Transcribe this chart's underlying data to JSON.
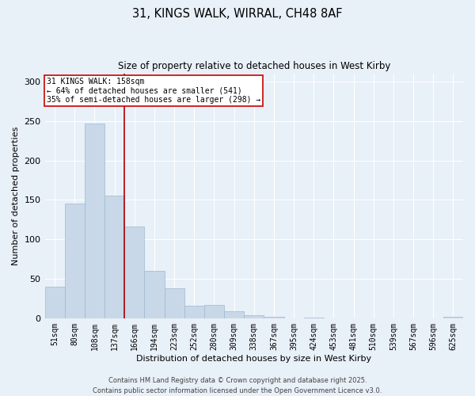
{
  "title_line1": "31, KINGS WALK, WIRRAL, CH48 8AF",
  "title_line2": "Size of property relative to detached houses in West Kirby",
  "xlabel": "Distribution of detached houses by size in West Kirby",
  "ylabel": "Number of detached properties",
  "categories": [
    "51sqm",
    "80sqm",
    "108sqm",
    "137sqm",
    "166sqm",
    "194sqm",
    "223sqm",
    "252sqm",
    "280sqm",
    "309sqm",
    "338sqm",
    "367sqm",
    "395sqm",
    "424sqm",
    "453sqm",
    "481sqm",
    "510sqm",
    "539sqm",
    "567sqm",
    "596sqm",
    "625sqm"
  ],
  "values": [
    40,
    145,
    247,
    155,
    116,
    60,
    38,
    16,
    17,
    9,
    4,
    2,
    0,
    1,
    0,
    0,
    0,
    0,
    0,
    0,
    2
  ],
  "bar_color": "#c8d8e8",
  "bar_edgecolor": "#a0b8d0",
  "vline_x": 3.5,
  "vline_color": "#aa0000",
  "annotation_text": "31 KINGS WALK: 158sqm\n← 64% of detached houses are smaller (541)\n35% of semi-detached houses are larger (298) →",
  "annotation_box_color": "#ffffff",
  "annotation_border_color": "#cc0000",
  "ylim": [
    0,
    310
  ],
  "yticks": [
    0,
    50,
    100,
    150,
    200,
    250,
    300
  ],
  "background_color": "#e8f0f8",
  "grid_color": "#ffffff",
  "footnote1": "Contains HM Land Registry data © Crown copyright and database right 2025.",
  "footnote2": "Contains public sector information licensed under the Open Government Licence v3.0."
}
